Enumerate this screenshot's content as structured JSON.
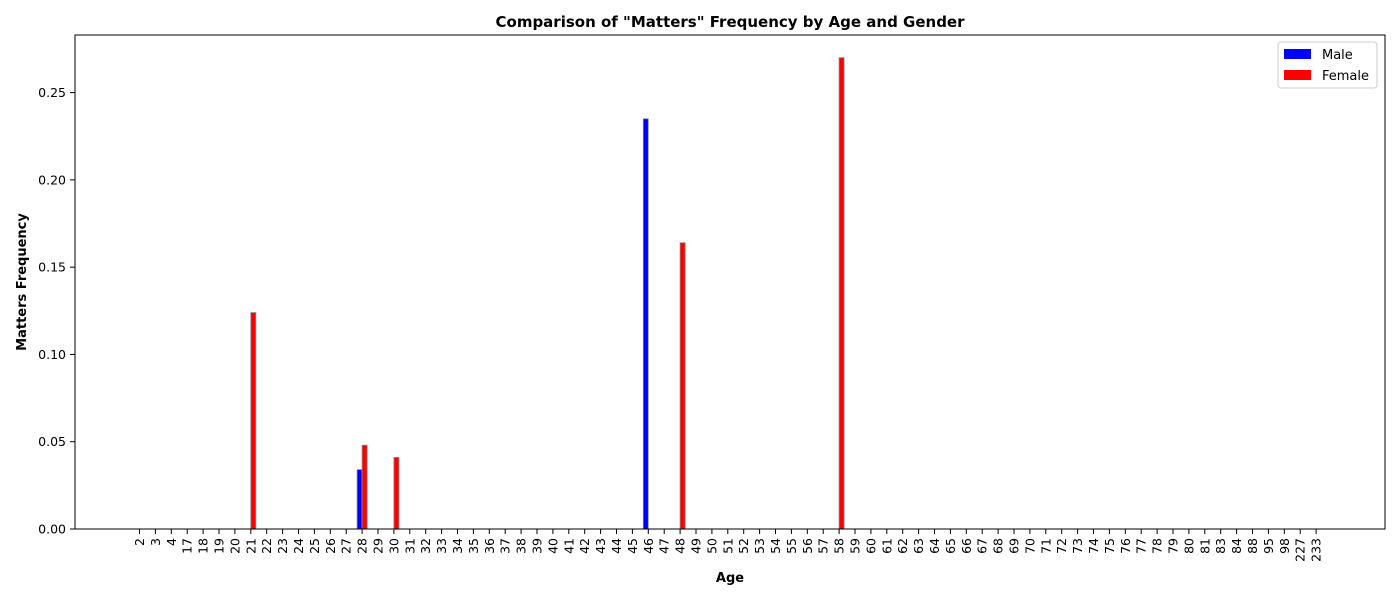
{
  "chart_data": {
    "type": "bar",
    "title": "Comparison of \"Matters\" Frequency by Age and Gender",
    "xlabel": "Age",
    "ylabel": "Matters Frequency",
    "categories": [
      "2",
      "3",
      "4",
      "17",
      "18",
      "19",
      "20",
      "21",
      "22",
      "23",
      "24",
      "25",
      "26",
      "27",
      "28",
      "29",
      "30",
      "31",
      "32",
      "33",
      "34",
      "35",
      "36",
      "37",
      "38",
      "39",
      "40",
      "41",
      "42",
      "43",
      "44",
      "45",
      "46",
      "47",
      "48",
      "49",
      "50",
      "51",
      "52",
      "53",
      "54",
      "55",
      "56",
      "57",
      "58",
      "59",
      "60",
      "61",
      "62",
      "63",
      "64",
      "65",
      "66",
      "67",
      "68",
      "69",
      "70",
      "71",
      "72",
      "73",
      "74",
      "75",
      "76",
      "77",
      "78",
      "79",
      "80",
      "81",
      "83",
      "84",
      "88",
      "95",
      "98",
      "227",
      "233"
    ],
    "series": [
      {
        "name": "Male",
        "color": "#0000ff",
        "values": {
          "28": 0.034,
          "46": 0.235
        }
      },
      {
        "name": "Female",
        "color": "#ff0000",
        "values": {
          "21": 0.124,
          "28": 0.048,
          "30": 0.041,
          "48": 0.164,
          "58": 0.27
        }
      }
    ],
    "ylim": [
      0,
      0.283
    ],
    "yticks": [
      "0.00",
      "0.05",
      "0.10",
      "0.15",
      "0.20",
      "0.25"
    ],
    "grid": false,
    "legend_position": "top-right"
  }
}
